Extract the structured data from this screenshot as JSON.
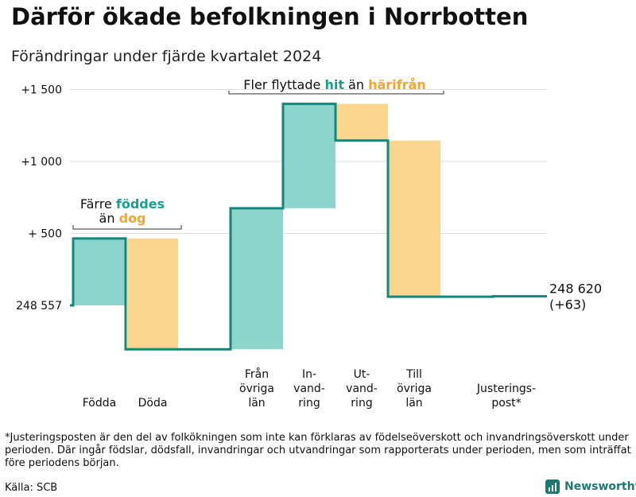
{
  "title": "Därför ökade befolkningen i Norrbotten",
  "subtitle": "Förändringar under fjärde kvartalet 2024",
  "colors": {
    "positive": "#8dd5cc",
    "negative": "#fbd68f",
    "line": "#12877d",
    "positive_text": "#1a9e92",
    "negative_text": "#f2a531",
    "grid": "#dddddd"
  },
  "chart_data": {
    "type": "waterfall",
    "baseline": 248557,
    "baseline_label": "248 557",
    "final_label": "248 620",
    "final_change_label": "(+63)",
    "ylim": [
      -300,
      1600
    ],
    "yticks": [
      {
        "value": 500,
        "label": "+  500"
      },
      {
        "value": 1000,
        "label": "+1 000"
      },
      {
        "value": 1500,
        "label": "+1 500"
      }
    ],
    "steps": [
      {
        "category": "Födda",
        "label_lines": [
          "Födda"
        ],
        "delta": 465
      },
      {
        "category": "Döda",
        "label_lines": [
          "Döda"
        ],
        "delta": -770
      },
      {
        "category": "Från övriga län",
        "label_lines": [
          "Från",
          "övriga",
          "län"
        ],
        "delta": 980
      },
      {
        "category": "Invandring",
        "label_lines": [
          "In-",
          "vand-",
          "ring"
        ],
        "delta": 725
      },
      {
        "category": "Utvandring",
        "label_lines": [
          "Ut-",
          "vand-",
          "ring"
        ],
        "delta": -255
      },
      {
        "category": "Till övriga län",
        "label_lines": [
          "Till",
          "övriga",
          "län"
        ],
        "delta": -1085
      },
      {
        "category": "Justeringspost*",
        "label_lines": [
          "Justerings-",
          "post*"
        ],
        "delta": 3
      }
    ],
    "annotations": [
      {
        "name": "births-deaths",
        "parts": [
          "Färre ",
          "föddes",
          "än ",
          "dog"
        ]
      },
      {
        "name": "migration",
        "parts": [
          "Fler flyttade ",
          "hit",
          " än ",
          "härifrån"
        ]
      }
    ]
  },
  "footnote": "*Justeringsposten är den del av folkökningen som inte kan förklaras av födelseöverskott och invandringsöverskott under perioden. Där ingår födslar, dödsfall, invandringar och utvandringar som rapporterats under perioden, men som inträffat före periodens början.",
  "source": "Källa: SCB",
  "brand": "Newsworthy"
}
